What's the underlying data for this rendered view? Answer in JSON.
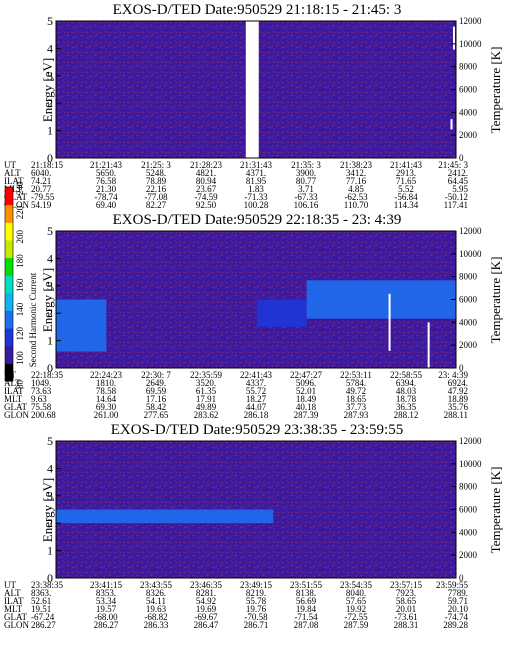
{
  "panels": [
    {
      "title": "EXOS-D/TED   Date:950529  21:18:15 - 21:45: 3",
      "y_label": "Energy [eV]",
      "y_ticks": [
        "5",
        "4",
        "3",
        "2",
        "1",
        "0"
      ],
      "y2_label": "Temperature [K]",
      "y2_ticks": [
        "12000",
        "10000",
        "8000",
        "6000",
        "4000",
        "2000",
        "0"
      ],
      "rows": [
        {
          "label": "UT",
          "values": [
            "21:18:15",
            "21:21:43",
            "21:25: 3",
            "21:28:23",
            "21:31:43",
            "21:35: 3",
            "21:38:23",
            "21:41:43",
            "21:45: 3"
          ]
        },
        {
          "label": "ALT",
          "values": [
            "6040.",
            "5650.",
            "5248.",
            "4821.",
            "4371.",
            "3900.",
            "3412.",
            "2913.",
            "2412."
          ]
        },
        {
          "label": "ILAT",
          "values": [
            "74.21",
            "76.58",
            "78.89",
            "80.94",
            "81.95",
            "80.77",
            "77.16",
            "71.65",
            "64.45"
          ]
        },
        {
          "label": "MLT",
          "values": [
            "20.77",
            "21.30",
            "22.16",
            "23.67",
            "1.83",
            "3.71",
            "4.85",
            "5.52",
            "5.95"
          ]
        },
        {
          "label": "GLAT",
          "values": [
            "-79.55",
            "-78.74",
            "-77.08",
            "-74.59",
            "-71.33",
            "-67.33",
            "-62.53",
            "-56.84",
            "-50.12"
          ]
        },
        {
          "label": "GLON",
          "values": [
            "54.19",
            "69.40",
            "82.27",
            "92.50",
            "100.28",
            "106.16",
            "110.70",
            "114.34",
            "117.41"
          ]
        }
      ]
    },
    {
      "title": "EXOS-D/TED   Date:950529  22:18:35 - 23: 4:39",
      "y_label": "Energy [eV]",
      "y_ticks": [
        "5",
        "4",
        "3",
        "2",
        "1",
        "0"
      ],
      "y2_label": "Temperature [K]",
      "y2_ticks": [
        "12000",
        "10000",
        "8000",
        "6000",
        "4000",
        "2000",
        "0"
      ],
      "rows": [
        {
          "label": "UT",
          "values": [
            "22:18:35",
            "22:24:23",
            "22:30: 7",
            "22:35:59",
            "22:41:43",
            "22:47:27",
            "22:53:11",
            "22:58:55",
            "23: 4:39"
          ]
        },
        {
          "label": "ALT",
          "values": [
            "1049.",
            "1810.",
            "2649.",
            "3520.",
            "4337.",
            "5096.",
            "5784.",
            "6394.",
            "6924."
          ]
        },
        {
          "label": "ILAT",
          "values": [
            "73.63",
            "78.58",
            "69.59",
            "61.35",
            "55.72",
            "52.01",
            "49.72",
            "48.03",
            "47.92"
          ]
        },
        {
          "label": "MLT",
          "values": [
            "9.63",
            "14.64",
            "17.16",
            "17.91",
            "18.27",
            "18.49",
            "18.65",
            "18.78",
            "18.89"
          ]
        },
        {
          "label": "GLAT",
          "values": [
            "75.58",
            "69.30",
            "58.42",
            "49.89",
            "44.07",
            "40.18",
            "37.73",
            "36.35",
            "35.76"
          ]
        },
        {
          "label": "GLON",
          "values": [
            "200.68",
            "261.00",
            "277.65",
            "283.62",
            "286.18",
            "287.39",
            "287.93",
            "288.12",
            "288.11"
          ]
        }
      ]
    },
    {
      "title": "EXOS-D/TED   Date:950529  23:38:35 - 23:59:55",
      "y_label": "Energy [eV]",
      "y_ticks": [
        "5",
        "4",
        "3",
        "2",
        "1",
        "0"
      ],
      "y2_label": "Temperature [K]",
      "y2_ticks": [
        "12000",
        "10000",
        "8000",
        "6000",
        "4000",
        "2000",
        "0"
      ],
      "rows": [
        {
          "label": "UT",
          "values": [
            "23:38:35",
            "23:41:15",
            "23:43:55",
            "23:46:35",
            "23:49:15",
            "23:51:55",
            "23:54:35",
            "23:57:15",
            "23:59:55"
          ]
        },
        {
          "label": "ALT",
          "values": [
            "8363.",
            "8353.",
            "8326.",
            "8281.",
            "8219.",
            "8138.",
            "8040.",
            "7923.",
            "7789."
          ]
        },
        {
          "label": "ILAT",
          "values": [
            "52.61",
            "53.34",
            "54.11",
            "54.92",
            "55.78",
            "56.69",
            "57.65",
            "58.65",
            "59.71"
          ]
        },
        {
          "label": "MLT",
          "values": [
            "19.51",
            "19.57",
            "19.63",
            "19.69",
            "19.76",
            "19.84",
            "19.92",
            "20.01",
            "20.10"
          ]
        },
        {
          "label": "GLAT",
          "values": [
            "-67.24",
            "-68.00",
            "-68.82",
            "-69.67",
            "-70.58",
            "-71.54",
            "-72.55",
            "-73.61",
            "-74.74"
          ]
        },
        {
          "label": "GLON",
          "values": [
            "286.27",
            "286.27",
            "286.33",
            "286.47",
            "286.71",
            "287.08",
            "287.59",
            "288.31",
            "289.28"
          ]
        }
      ]
    }
  ],
  "colorbar": {
    "label": "Second Harmonic Current",
    "ticks": [
      "240",
      "220",
      "200",
      "180",
      "160",
      "140",
      "120",
      "100",
      "80"
    ]
  },
  "chart_data": [
    {
      "type": "heatmap",
      "title": "EXOS-D/TED   Date:950529  21:18:15 - 21:45: 3",
      "ylabel": "Energy [eV]",
      "ylim": [
        0,
        5
      ],
      "y2label": "Temperature [K]",
      "y2lim": [
        0,
        12000
      ],
      "x": [
        "21:18:15",
        "21:21:43",
        "21:25: 3",
        "21:28:23",
        "21:31:43",
        "21:35: 3",
        "21:38:23",
        "21:41:43",
        "21:45: 3"
      ],
      "data_gap": {
        "start": "21:30:58",
        "end": "21:31:50"
      },
      "band": null,
      "temperature_markers": [
        {
          "time": "21:44:55",
          "from": 9500,
          "to": 11500
        },
        {
          "time": "21:44:45",
          "from": 2500,
          "to": 3400
        }
      ]
    },
    {
      "type": "heatmap",
      "title": "EXOS-D/TED   Date:950529  22:18:35 - 23: 4:39",
      "ylabel": "Energy [eV]",
      "ylim": [
        0,
        5
      ],
      "y2label": "Temperature [K]",
      "y2lim": [
        0,
        12000
      ],
      "x": [
        "22:18:35",
        "22:24:23",
        "22:30: 7",
        "22:35:59",
        "22:41:43",
        "22:47:27",
        "22:53:11",
        "22:58:55",
        "23: 4:39"
      ],
      "bands": [
        {
          "start": "22:18:35",
          "end": "22:24:23",
          "e_low": 0.6,
          "e_high": 2.5,
          "level": 130
        },
        {
          "start": "22:41:43",
          "end": "22:47:27",
          "e_low": 1.5,
          "e_high": 2.5,
          "level": 115
        },
        {
          "start": "22:47:27",
          "end": "23: 4:39",
          "e_low": 1.8,
          "e_high": 3.2,
          "level": 125
        }
      ],
      "temperature_markers": [
        {
          "time": "22:57:00",
          "from": 1500,
          "to": 6500
        },
        {
          "time": "23: 1:30",
          "from": 0,
          "to": 4000
        }
      ]
    },
    {
      "type": "heatmap",
      "title": "EXOS-D/TED   Date:950529  23:38:35 - 23:59:55",
      "ylabel": "Energy [eV]",
      "ylim": [
        0,
        5
      ],
      "y2label": "Temperature [K]",
      "y2lim": [
        0,
        12000
      ],
      "x": [
        "23:38:35",
        "23:41:15",
        "23:43:55",
        "23:46:35",
        "23:49:15",
        "23:51:55",
        "23:54:35",
        "23:57:15",
        "23:59:55"
      ],
      "bands": [
        {
          "start": "23:38:35",
          "end": "23:50:10",
          "e_low": 2.0,
          "e_high": 2.5,
          "level": 120
        }
      ],
      "temperature_markers": []
    }
  ]
}
